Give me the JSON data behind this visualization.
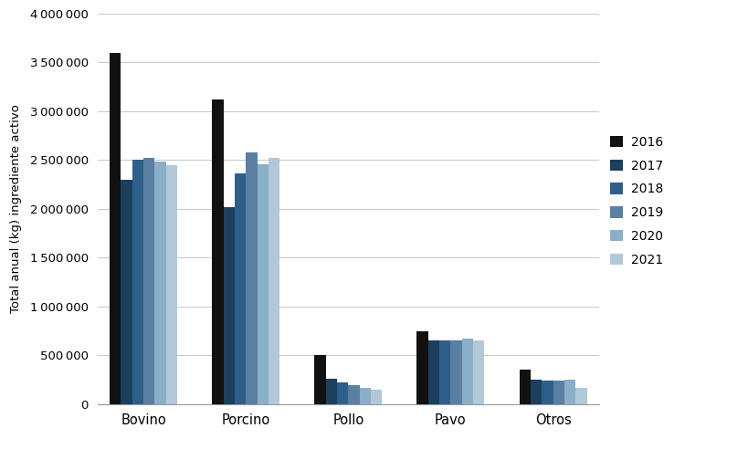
{
  "categories": [
    "Bovino",
    "Porcino",
    "Pollo",
    "Pavo",
    "Otros"
  ],
  "years": [
    "2016",
    "2017",
    "2018",
    "2019",
    "2020",
    "2021"
  ],
  "colors": [
    "#111111",
    "#1c3f5e",
    "#2e5f8a",
    "#5a7fa3",
    "#8aafc8",
    "#b0c8d8"
  ],
  "values": {
    "Bovino": [
      3600000,
      2300000,
      2500000,
      2520000,
      2480000,
      2450000
    ],
    "Porcino": [
      3120000,
      2020000,
      2360000,
      2580000,
      2460000,
      2520000
    ],
    "Pollo": [
      500000,
      260000,
      220000,
      190000,
      170000,
      150000
    ],
    "Pavo": [
      750000,
      650000,
      650000,
      650000,
      670000,
      650000
    ],
    "Otros": [
      350000,
      250000,
      240000,
      240000,
      255000,
      170000
    ]
  },
  "ylabel": "Total anual (kg) ingrediente activo",
  "ylim": [
    0,
    4000000
  ],
  "yticks": [
    0,
    500000,
    1000000,
    1500000,
    2000000,
    2500000,
    3000000,
    3500000,
    4000000
  ],
  "background_color": "#ffffff",
  "grid_color": "#c8c8c8"
}
